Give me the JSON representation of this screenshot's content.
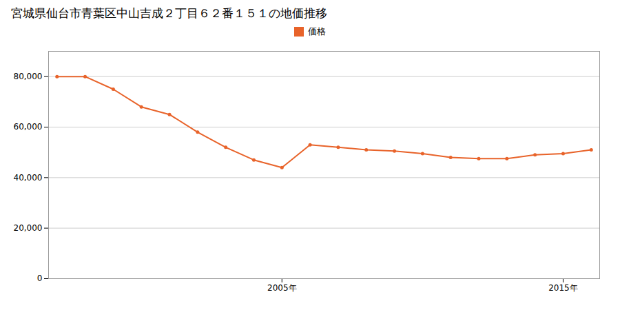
{
  "chart_data": {
    "type": "line",
    "title": "宮城県仙台市青葉区中山吉成２丁目６２番１５１の地価推移",
    "x": [
      1997,
      1998,
      1999,
      2000,
      2001,
      2002,
      2003,
      2004,
      2005,
      2006,
      2007,
      2008,
      2009,
      2010,
      2011,
      2012,
      2013,
      2014,
      2015,
      2016
    ],
    "series": [
      {
        "name": "価格",
        "color": "#e8632a",
        "marker": "circle",
        "values": [
          80000,
          80000,
          75000,
          68000,
          65000,
          58000,
          52000,
          47000,
          44000,
          53000,
          52000,
          51000,
          50500,
          49500,
          48000,
          47500,
          47500,
          49000,
          49500,
          51000
        ]
      }
    ],
    "xlim": [
      1996.7,
      2016.3
    ],
    "xticks": [
      {
        "value": 2005,
        "label": "2005年"
      },
      {
        "value": 2015,
        "label": "2015年"
      }
    ],
    "ylim": [
      0,
      90000
    ],
    "yticks": [
      0,
      {
        "value": 20000,
        "label": "20,000"
      },
      {
        "value": 40000,
        "label": "40,000"
      },
      {
        "value": 60000,
        "label": "60,000"
      },
      {
        "value": 80000,
        "label": "80,000"
      }
    ],
    "grid": "y",
    "legend": "top"
  }
}
